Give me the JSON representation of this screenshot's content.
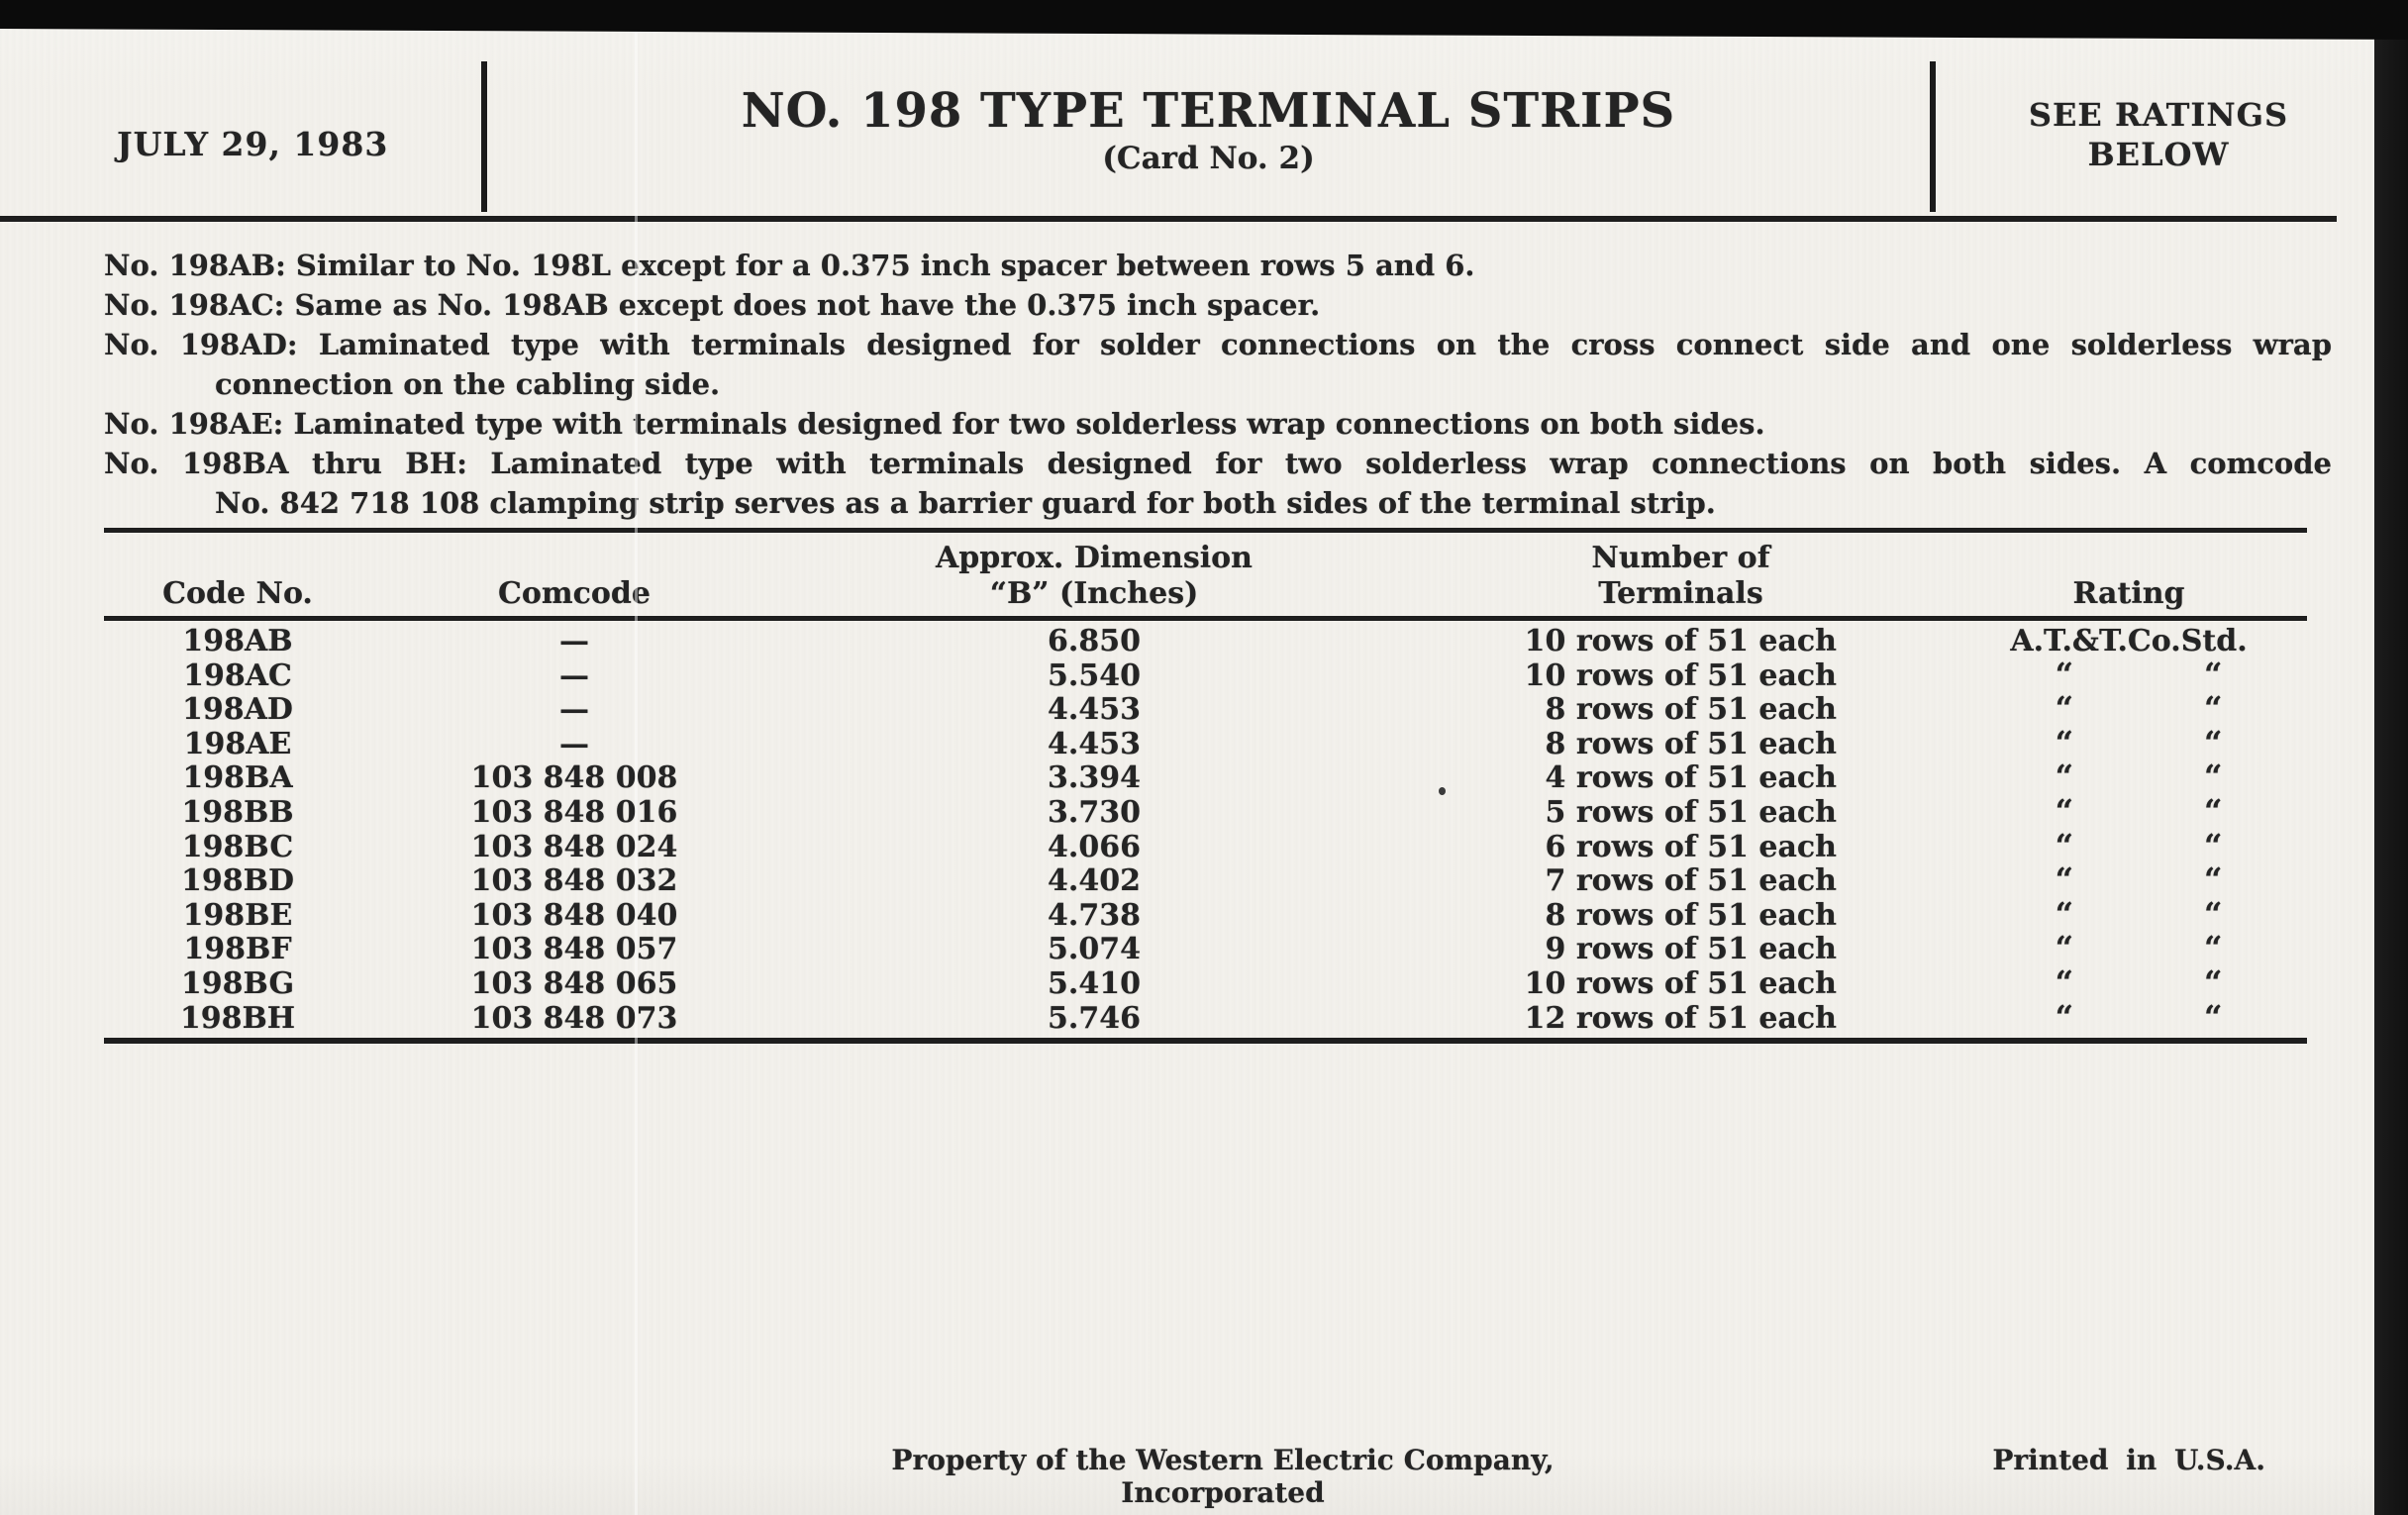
{
  "page": {
    "date": "JULY 29, 1983",
    "title": "NO. 198 TYPE TERMINAL STRIPS",
    "subtitle": "(Card No. 2)",
    "ratings_note_line1": "SEE RATINGS",
    "ratings_note_line2": "BELOW"
  },
  "notes": [
    "No. 198AB: Similar to No. 198L except for a 0.375 inch spacer between rows 5 and 6.",
    "No. 198AC: Same as No. 198AB except does not have the 0.375 inch spacer.",
    "No. 198AD: Laminated type with terminals designed for solder connections on the cross connect side and one solderless wrap",
    "connection on the cabling side.",
    "No. 198AE: Laminated type with terminals designed for two solderless wrap connections on both sides.",
    "No. 198BA thru BH: Laminated type with terminals designed for two solderless wrap connections on both sides. A comcode",
    "No. 842 718 108 clamping strip serves as a barrier guard for both sides of the terminal strip."
  ],
  "table": {
    "headers": {
      "code": "Code No.",
      "comcode": "Comcode",
      "dimension_line1": "Approx. Dimension",
      "dimension_line2": "“B” (Inches)",
      "terminals_line1": "Number of",
      "terminals_line2": "Terminals",
      "rating": "Rating"
    },
    "ditto_mark": "“",
    "rows": [
      {
        "code": "198AB",
        "comcode": "—",
        "dimension": "6.850",
        "terminals": "10 rows of 51 each",
        "rating": "A.T.&T.Co.Std."
      },
      {
        "code": "198AC",
        "comcode": "—",
        "dimension": "5.540",
        "terminals": "10 rows of 51 each"
      },
      {
        "code": "198AD",
        "comcode": "—",
        "dimension": "4.453",
        "terminals": "8 rows of 51 each"
      },
      {
        "code": "198AE",
        "comcode": "—",
        "dimension": "4.453",
        "terminals": "8 rows of 51 each"
      },
      {
        "code": "198BA",
        "comcode": "103 848 008",
        "dimension": "3.394",
        "terminals": "4 rows of 51 each"
      },
      {
        "code": "198BB",
        "comcode": "103 848 016",
        "dimension": "3.730",
        "terminals": "5 rows of 51 each"
      },
      {
        "code": "198BC",
        "comcode": "103 848 024",
        "dimension": "4.066",
        "terminals": "6 rows of 51 each"
      },
      {
        "code": "198BD",
        "comcode": "103 848 032",
        "dimension": "4.402",
        "terminals": "7 rows of 51 each"
      },
      {
        "code": "198BE",
        "comcode": "103 848 040",
        "dimension": "4.738",
        "terminals": "8 rows of 51 each"
      },
      {
        "code": "198BF",
        "comcode": "103 848 057",
        "dimension": "5.074",
        "terminals": "9 rows of 51 each"
      },
      {
        "code": "198BG",
        "comcode": "103 848 065",
        "dimension": "5.410",
        "terminals": "10 rows of 51 each"
      },
      {
        "code": "198BH",
        "comcode": "103 848 073",
        "dimension": "5.746",
        "terminals": "12 rows of 51 each"
      }
    ]
  },
  "footer": {
    "property": "Property of the Western Electric Company, Incorporated",
    "printed": "Printed in U.S.A."
  },
  "colors": {
    "paper": "#f3f1ec",
    "ink": "#242424",
    "scan_black": "#0d0d0d"
  }
}
